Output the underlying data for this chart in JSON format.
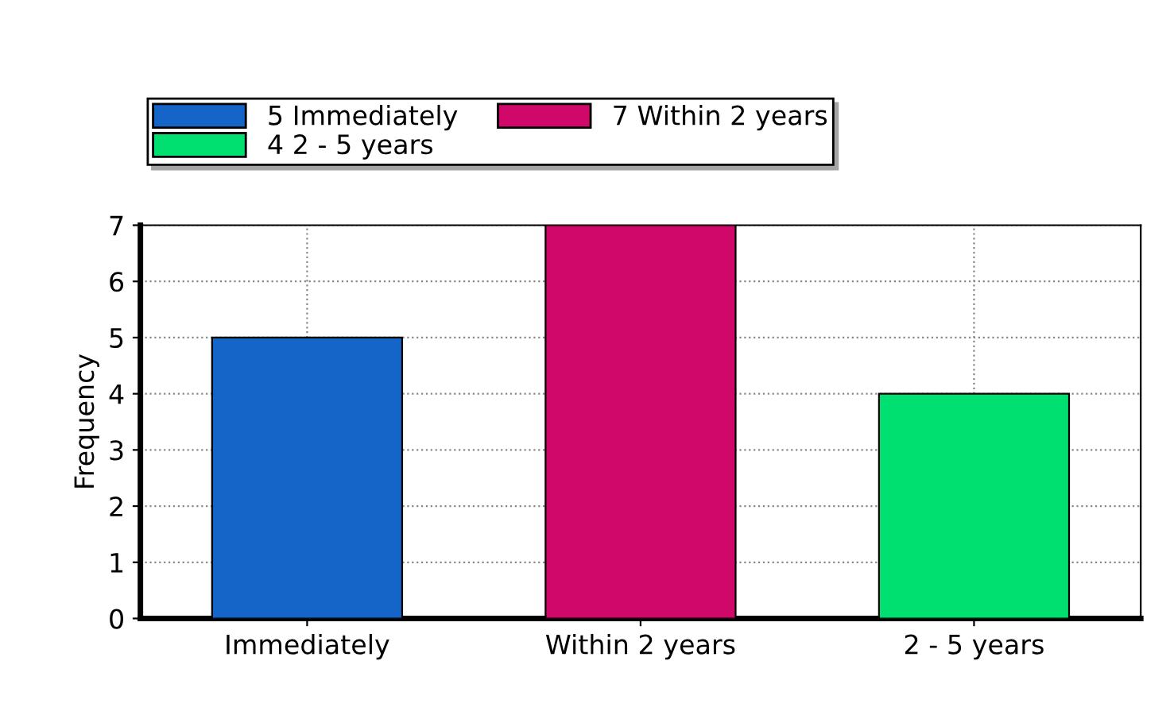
{
  "chart_data": {
    "type": "bar",
    "ylabel": "Frequency",
    "categories": [
      "Immediately",
      "Within 2 years",
      "2 - 5 years"
    ],
    "series": [
      {
        "name": "5 Immediately",
        "color": "#1565c8",
        "values": [
          5,
          null,
          null
        ]
      },
      {
        "name": "7 Within 2 years",
        "color": "#d0086a",
        "values": [
          null,
          7,
          null
        ]
      },
      {
        "name": "4 2 - 5 years",
        "color": "#00e070",
        "values": [
          null,
          null,
          4
        ]
      }
    ],
    "ylim": [
      0,
      7
    ],
    "yticks": [
      0,
      1,
      2,
      3,
      4,
      5,
      6,
      7
    ],
    "grid": true,
    "legend": "top"
  }
}
